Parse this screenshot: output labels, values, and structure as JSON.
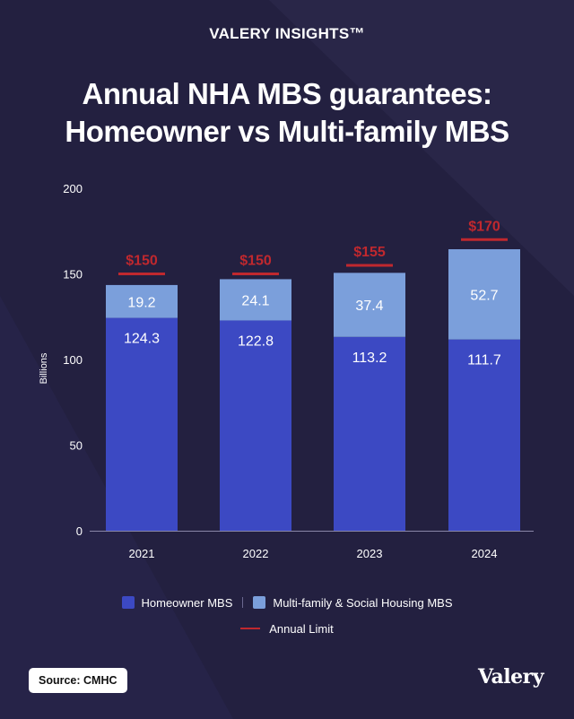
{
  "brand": "VALERY INSIGHTS™",
  "title_line1": "Annual NHA MBS guarantees:",
  "title_line2": "Homeowner vs Multi-family MBS",
  "chart_data": {
    "type": "bar",
    "stacked": true,
    "categories": [
      "2021",
      "2022",
      "2023",
      "2024"
    ],
    "series": [
      {
        "name": "Homeowner MBS",
        "values": [
          124.3,
          122.8,
          113.2,
          111.7
        ],
        "color": "#3c49c3",
        "labels": [
          "124.3",
          "122.8",
          "113.2",
          "111.7"
        ]
      },
      {
        "name": "Multi-family & Social Housing MBS",
        "values": [
          19.2,
          24.1,
          37.4,
          52.7
        ],
        "color": "#7b9fdb",
        "labels": [
          "19.2",
          "24.1",
          "37.4",
          "52.7"
        ]
      }
    ],
    "annual_limit": {
      "name": "Annual Limit",
      "values": [
        150,
        150,
        155,
        170
      ],
      "labels": [
        "$150",
        "$150",
        "$155",
        "$170"
      ],
      "color": "#c0282e"
    },
    "ylabel": "Billions",
    "ylim": [
      0,
      200
    ],
    "yticks": [
      0,
      50,
      100,
      150,
      200
    ],
    "grid": false,
    "legend_position": "bottom"
  },
  "legend": {
    "homeowner": "Homeowner MBS",
    "multifamily": "Multi-family & Social Housing MBS",
    "limit": "Annual Limit"
  },
  "source": "Source: CMHC",
  "logo": "Valery",
  "colors": {
    "background": "#232040",
    "homeowner": "#3c49c3",
    "multifamily": "#7b9fdb",
    "limit": "#c0282e"
  }
}
